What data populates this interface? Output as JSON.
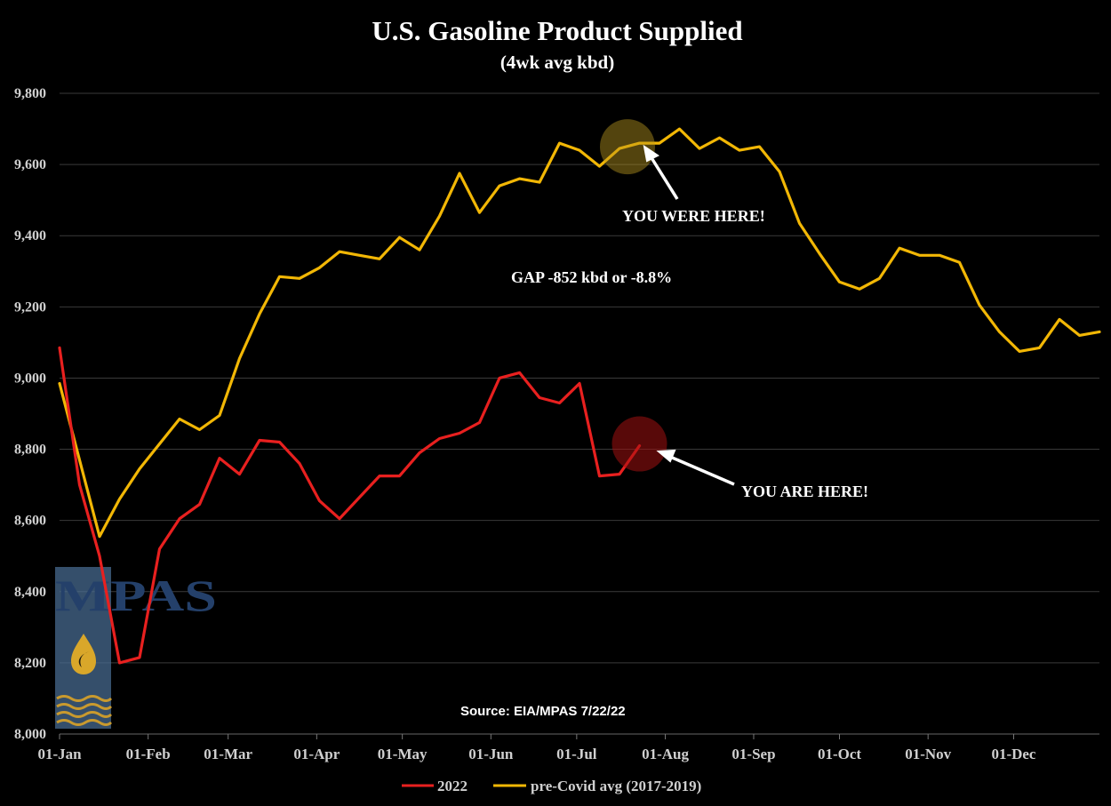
{
  "colors": {
    "background": "#000000",
    "series_2022": "#e8201f",
    "series_precovid": "#f2b705",
    "grid": "#3a3a3a",
    "text": "#ffffff",
    "tick_text": "#d0d0d0",
    "logo_panel": "#4a6d94",
    "logo_text": "#223a5e"
  },
  "logo": {
    "text": "MPAS"
  },
  "chart_data": {
    "type": "line",
    "title": "U.S. Gasoline Product Supplied",
    "subtitle": "(4wk avg kbd)",
    "xlabel": "",
    "ylabel": "",
    "ylim": [
      8000,
      9800
    ],
    "ytick_step": 200,
    "yticks": [
      "8,000",
      "8,200",
      "8,400",
      "8,600",
      "8,800",
      "9,000",
      "9,200",
      "9,400",
      "9,600",
      "9,800"
    ],
    "x_unit": "week",
    "xlim": [
      0,
      52
    ],
    "xticks": [
      {
        "label": "01-Jan",
        "x": 0
      },
      {
        "label": "01-Feb",
        "x": 4.43
      },
      {
        "label": "01-Mar",
        "x": 8.43
      },
      {
        "label": "01-Apr",
        "x": 12.86
      },
      {
        "label": "01-May",
        "x": 17.14
      },
      {
        "label": "01-Jun",
        "x": 21.57
      },
      {
        "label": "01-Jul",
        "x": 25.86
      },
      {
        "label": "01-Aug",
        "x": 30.29
      },
      {
        "label": "01-Sep",
        "x": 34.71
      },
      {
        "label": "01-Oct",
        "x": 39.0
      },
      {
        "label": "01-Nov",
        "x": 43.43
      },
      {
        "label": "01-Dec",
        "x": 47.71
      }
    ],
    "series": [
      {
        "name": "2022",
        "x": [
          0,
          1,
          2,
          3,
          4,
          5,
          6,
          7,
          8,
          9,
          10,
          11,
          12,
          13,
          14,
          15,
          16,
          17,
          18,
          19,
          20,
          21,
          22,
          23,
          24,
          25,
          26,
          27,
          28,
          29
        ],
        "values": [
          9085,
          8700,
          8500,
          8200,
          8215,
          8520,
          8605,
          8645,
          8775,
          8730,
          8825,
          8820,
          8760,
          8655,
          8605,
          8665,
          8725,
          8725,
          8790,
          8830,
          8845,
          8875,
          9000,
          9015,
          8945,
          8930,
          8985,
          8725,
          8730,
          8810
        ]
      },
      {
        "name": "pre-Covid avg (2017-2019)",
        "x": [
          0,
          1,
          2,
          3,
          4,
          5,
          6,
          7,
          8,
          9,
          10,
          11,
          12,
          13,
          14,
          15,
          16,
          17,
          18,
          19,
          20,
          21,
          22,
          23,
          24,
          25,
          26,
          27,
          28,
          29,
          30,
          31,
          32,
          33,
          34,
          35,
          36,
          37,
          38,
          39,
          40,
          41,
          42,
          43,
          44,
          45,
          46,
          47,
          48,
          49,
          50,
          51,
          52
        ],
        "values": [
          8985,
          8770,
          8555,
          8660,
          8745,
          8815,
          8885,
          8855,
          8895,
          9055,
          9180,
          9285,
          9280,
          9310,
          9355,
          9345,
          9335,
          9395,
          9360,
          9455,
          9575,
          9465,
          9540,
          9560,
          9550,
          9660,
          9640,
          9595,
          9645,
          9660,
          9660,
          9700,
          9645,
          9675,
          9640,
          9650,
          9580,
          9435,
          9350,
          9270,
          9250,
          9280,
          9365,
          9345,
          9345,
          9325,
          9205,
          9130,
          9075,
          9085,
          9165,
          9120,
          9130
        ]
      }
    ],
    "annotations": [
      {
        "id": "you-were-here",
        "text": "YOU WERE HERE!",
        "series": "pre-Covid avg (2017-2019)",
        "x": 28.4,
        "y": 9650
      },
      {
        "id": "you-are-here",
        "text": "YOU ARE HERE!",
        "series": "2022",
        "x": 29,
        "y": 8815
      },
      {
        "id": "gap",
        "text": "GAP -852 kbd or -8.8%"
      },
      {
        "id": "source",
        "text": "Source: EIA/MPAS 7/22/22"
      }
    ],
    "legend": {
      "position": "bottom-center",
      "entries": [
        "2022",
        "pre-Covid avg (2017-2019)"
      ]
    }
  }
}
